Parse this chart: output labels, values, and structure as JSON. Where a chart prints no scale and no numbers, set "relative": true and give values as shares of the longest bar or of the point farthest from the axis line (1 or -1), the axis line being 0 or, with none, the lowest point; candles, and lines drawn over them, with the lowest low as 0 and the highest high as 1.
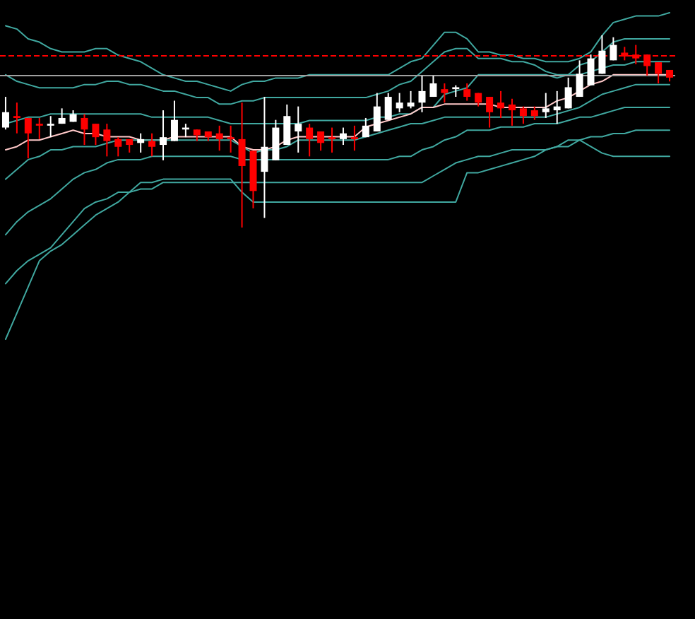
{
  "chart_data": [
    {
      "type": "candlestick",
      "relative": true,
      "categories": [
        null,
        null,
        null,
        null,
        null,
        null,
        null,
        null,
        null,
        null,
        null,
        null,
        null,
        null,
        null,
        null,
        null,
        null,
        null,
        null,
        null,
        null,
        null,
        null,
        null,
        null,
        null,
        null,
        null,
        null,
        null,
        null,
        null,
        null,
        null,
        null,
        null,
        null,
        null,
        null,
        null,
        null,
        null,
        null,
        null,
        null,
        null,
        null,
        null,
        null,
        null,
        null,
        null,
        null,
        null,
        null,
        null,
        null,
        null,
        null
      ],
      "ohlc": [
        [
          0.52,
          0.68,
          0.51,
          0.6
        ],
        [
          0.58,
          0.65,
          0.49,
          0.57
        ],
        [
          0.57,
          0.57,
          0.36,
          0.49
        ],
        [
          0.54,
          0.57,
          0.46,
          0.53
        ],
        [
          0.53,
          0.58,
          0.47,
          0.54
        ],
        [
          0.54,
          0.62,
          0.54,
          0.57
        ],
        [
          0.55,
          0.61,
          0.55,
          0.59
        ],
        [
          0.57,
          0.59,
          0.43,
          0.51
        ],
        [
          0.54,
          0.54,
          0.43,
          0.47
        ],
        [
          0.51,
          0.54,
          0.37,
          0.45
        ],
        [
          0.46,
          0.47,
          0.37,
          0.42
        ],
        [
          0.46,
          0.46,
          0.39,
          0.43
        ],
        [
          0.44,
          0.49,
          0.39,
          0.46
        ],
        [
          0.45,
          0.49,
          0.37,
          0.42
        ],
        [
          0.43,
          0.61,
          0.35,
          0.47
        ],
        [
          0.45,
          0.66,
          0.45,
          0.56
        ],
        [
          0.51,
          0.54,
          0.47,
          0.52
        ],
        [
          0.51,
          0.51,
          0.45,
          0.48
        ],
        [
          0.5,
          0.5,
          0.45,
          0.47
        ],
        [
          0.49,
          0.53,
          0.4,
          0.46
        ],
        [
          0.47,
          0.53,
          0.39,
          0.46
        ],
        [
          0.46,
          0.65,
          0,
          0.32
        ],
        [
          0.4,
          0.4,
          0.1,
          0.19
        ],
        [
          0.29,
          0.68,
          0.05,
          0.42
        ],
        [
          0.35,
          0.56,
          0.35,
          0.52
        ],
        [
          0.43,
          0.64,
          0.43,
          0.58
        ],
        [
          0.5,
          0.63,
          0.39,
          0.54
        ],
        [
          0.52,
          0.54,
          0.37,
          0.46
        ],
        [
          0.5,
          0.5,
          0.4,
          0.44
        ],
        [
          0.47,
          0.52,
          0.39,
          0.46
        ],
        [
          0.46,
          0.52,
          0.43,
          0.49
        ],
        [
          0.47,
          0.53,
          0.4,
          0.46
        ],
        [
          0.47,
          0.57,
          0.47,
          0.53
        ],
        [
          0.5,
          0.7,
          0.5,
          0.63
        ],
        [
          0.56,
          0.7,
          0.56,
          0.68
        ],
        [
          0.62,
          0.7,
          0.6,
          0.65
        ],
        [
          0.63,
          0.71,
          0.62,
          0.65
        ],
        [
          0.65,
          0.79,
          0.6,
          0.71
        ],
        [
          0.68,
          0.79,
          0.68,
          0.75
        ],
        [
          0.72,
          0.75,
          0.65,
          0.7
        ],
        [
          0.72,
          0.74,
          0.68,
          0.73
        ],
        [
          0.72,
          0.75,
          0.66,
          0.68
        ],
        [
          0.7,
          0.7,
          0.63,
          0.65
        ],
        [
          0.68,
          0.68,
          0.52,
          0.6
        ],
        [
          0.65,
          0.71,
          0.57,
          0.62
        ],
        [
          0.64,
          0.67,
          0.53,
          0.61
        ],
        [
          0.62,
          0.63,
          0.54,
          0.58
        ],
        [
          0.61,
          0.63,
          0.56,
          0.58
        ],
        [
          0.6,
          0.7,
          0.57,
          0.62
        ],
        [
          0.61,
          0.71,
          0.54,
          0.63
        ],
        [
          0.62,
          0.78,
          0.62,
          0.73
        ],
        [
          0.68,
          0.87,
          0.68,
          0.8
        ],
        [
          0.74,
          0.9,
          0.74,
          0.88
        ],
        [
          0.8,
          1,
          0.8,
          0.92
        ],
        [
          0.87,
          0.99,
          0.87,
          0.95
        ],
        [
          0.91,
          0.94,
          0.87,
          0.89
        ],
        [
          0.9,
          0.95,
          0.85,
          0.88
        ],
        [
          0.9,
          0.9,
          0.79,
          0.84
        ],
        [
          0.86,
          0.86,
          0.75,
          0.8
        ],
        [
          0.82,
          0.82,
          0.76,
          0.78
        ]
      ],
      "colors": [
        "#ffffff",
        "#ff0000",
        "#ff0000",
        "#ff0000",
        "#ffffff",
        "#ffffff",
        "#ffffff",
        "#ff0000",
        "#ff0000",
        "#ff0000",
        "#ff0000",
        "#ff0000",
        "#ffffff",
        "#ff0000",
        "#ffffff",
        "#ffffff",
        "#ffffff",
        "#ff0000",
        "#ff0000",
        "#ff0000",
        "#ff0000",
        "#ff0000",
        "#ff0000",
        "#ffffff",
        "#ffffff",
        "#ffffff",
        "#ffffff",
        "#ff0000",
        "#ff0000",
        "#ff0000",
        "#ffffff",
        "#ff0000",
        "#ffffff",
        "#ffffff",
        "#ffffff",
        "#ffffff",
        "#ffffff",
        "#ffffff",
        "#ffffff",
        "#ff0000",
        "#ffffff",
        "#ff0000",
        "#ff0000",
        "#ff0000",
        "#ff0000",
        "#ff0000",
        "#ff0000",
        "#ff0000",
        "#ffffff",
        "#ffffff",
        "#ffffff",
        "#ffffff",
        "#ffffff",
        "#ffffff",
        "#ffffff",
        "#ff0000",
        "#ff0000",
        "#ff0000",
        "#ff0000",
        "#ff0000"
      ]
    },
    {
      "type": "line",
      "relative": true,
      "line_style": "solid",
      "ref_lines": [
        {
          "axis": "y",
          "value": 0.87,
          "color": "#ff0000",
          "line_style": "dashed"
        },
        {
          "axis": "y",
          "value": 0.81,
          "color": "#a0a0a0",
          "line_style": "solid"
        }
      ],
      "categories": [
        null,
        null,
        null,
        null,
        null,
        null,
        null,
        null,
        null,
        null,
        null,
        null,
        null,
        null,
        null,
        null,
        null,
        null,
        null,
        null,
        null,
        null,
        null,
        null,
        null,
        null,
        null,
        null,
        null,
        null,
        null,
        null,
        null,
        null,
        null,
        null,
        null,
        null,
        null,
        null,
        null,
        null,
        null,
        null,
        null,
        null,
        null,
        null,
        null,
        null,
        null,
        null,
        null,
        null,
        null,
        null,
        null,
        null,
        null,
        null
      ],
      "series": [
        {
          "color": "#40a8a0",
          "values": [
            0.96,
            0.95,
            0.92,
            0.91,
            0.89,
            0.88,
            0.88,
            0.88,
            0.89,
            0.89,
            0.87,
            0.86,
            0.85,
            0.83,
            0.81,
            0.8,
            0.79,
            0.79,
            0.78,
            0.77,
            0.76,
            0.78,
            0.79,
            0.79,
            0.8,
            0.8,
            0.8,
            0.81,
            0.81,
            0.81,
            0.81,
            0.81,
            0.81,
            0.81,
            0.81,
            0.83,
            0.85,
            0.86,
            0.9,
            0.94,
            0.94,
            0.92,
            0.88,
            0.88,
            0.87,
            0.87,
            0.86,
            0.86,
            0.85,
            0.85,
            0.85,
            0.86,
            0.88,
            0.93,
            0.97,
            0.98,
            0.99,
            0.99,
            0.99,
            1
          ]
        },
        {
          "color": "#40a8a0",
          "values": [
            0.81,
            0.79,
            0.78,
            0.77,
            0.77,
            0.77,
            0.77,
            0.78,
            0.78,
            0.79,
            0.79,
            0.78,
            0.78,
            0.77,
            0.76,
            0.76,
            0.75,
            0.74,
            0.74,
            0.72,
            0.72,
            0.73,
            0.73,
            0.74,
            0.74,
            0.74,
            0.74,
            0.74,
            0.74,
            0.74,
            0.74,
            0.74,
            0.74,
            0.75,
            0.76,
            0.78,
            0.79,
            0.82,
            0.85,
            0.88,
            0.89,
            0.89,
            0.86,
            0.86,
            0.86,
            0.85,
            0.85,
            0.84,
            0.82,
            0.81,
            0.81,
            0.84,
            0.85,
            0.88,
            0.91,
            0.92,
            0.92,
            0.92,
            0.92,
            0.92
          ]
        },
        {
          "color": "#40a8a0",
          "values": [
            0.66,
            0.67,
            0.68,
            0.68,
            0.69,
            0.69,
            0.69,
            0.69,
            0.69,
            0.69,
            0.69,
            0.69,
            0.69,
            0.68,
            0.68,
            0.68,
            0.68,
            0.68,
            0.68,
            0.67,
            0.66,
            0.66,
            0.66,
            0.66,
            0.66,
            0.66,
            0.66,
            0.67,
            0.67,
            0.67,
            0.67,
            0.67,
            0.67,
            0.68,
            0.68,
            0.69,
            0.69,
            0.71,
            0.71,
            0.75,
            0.76,
            0.77,
            0.81,
            0.81,
            0.81,
            0.81,
            0.81,
            0.81,
            0.81,
            0.8,
            0.81,
            0.81,
            0.82,
            0.83,
            0.84,
            0.84,
            0.85,
            0.85,
            0.85,
            0.85
          ]
        },
        {
          "color": "#ffc8c8",
          "values": [
            0.58,
            0.59,
            0.61,
            0.61,
            0.62,
            0.63,
            0.64,
            0.63,
            0.63,
            0.62,
            0.62,
            0.62,
            0.61,
            0.61,
            0.61,
            0.62,
            0.62,
            0.62,
            0.62,
            0.62,
            0.62,
            0.59,
            0.58,
            0.58,
            0.59,
            0.61,
            0.62,
            0.62,
            0.62,
            0.62,
            0.62,
            0.62,
            0.65,
            0.66,
            0.67,
            0.68,
            0.69,
            0.71,
            0.71,
            0.72,
            0.72,
            0.72,
            0.72,
            0.72,
            0.71,
            0.71,
            0.71,
            0.71,
            0.71,
            0.73,
            0.74,
            0.76,
            0.78,
            0.79,
            0.81,
            0.81,
            0.81,
            0.81,
            0.81,
            0.81
          ]
        },
        {
          "color": "#40a8a0",
          "values": [
            0.49,
            0.52,
            0.55,
            0.56,
            0.58,
            0.58,
            0.59,
            0.59,
            0.59,
            0.6,
            0.61,
            0.61,
            0.61,
            0.61,
            0.61,
            0.61,
            0.61,
            0.61,
            0.61,
            0.61,
            0.61,
            0.59,
            0.57,
            0.58,
            0.58,
            0.59,
            0.61,
            0.61,
            0.61,
            0.61,
            0.61,
            0.61,
            0.62,
            0.63,
            0.64,
            0.65,
            0.66,
            0.66,
            0.67,
            0.68,
            0.68,
            0.68,
            0.68,
            0.68,
            0.68,
            0.68,
            0.68,
            0.68,
            0.68,
            0.69,
            0.7,
            0.71,
            0.73,
            0.75,
            0.76,
            0.77,
            0.78,
            0.78,
            0.78,
            0.78
          ]
        },
        {
          "color": "#40a8a0",
          "values": [
            0.32,
            0.36,
            0.39,
            0.41,
            0.43,
            0.46,
            0.49,
            0.51,
            0.52,
            0.54,
            0.55,
            0.55,
            0.55,
            0.56,
            0.56,
            0.56,
            0.56,
            0.56,
            0.56,
            0.56,
            0.56,
            0.55,
            0.55,
            0.55,
            0.55,
            0.55,
            0.55,
            0.55,
            0.55,
            0.55,
            0.55,
            0.55,
            0.55,
            0.55,
            0.55,
            0.56,
            0.56,
            0.58,
            0.59,
            0.61,
            0.62,
            0.64,
            0.64,
            0.64,
            0.65,
            0.65,
            0.65,
            0.66,
            0.66,
            0.66,
            0.67,
            0.68,
            0.68,
            0.69,
            0.7,
            0.71,
            0.71,
            0.71,
            0.71,
            0.71
          ]
        },
        {
          "color": "#40a8a0",
          "values": [
            0.17,
            0.21,
            0.24,
            0.26,
            0.28,
            0.32,
            0.36,
            0.4,
            0.42,
            0.43,
            0.45,
            0.45,
            0.46,
            0.46,
            0.48,
            0.48,
            0.48,
            0.48,
            0.48,
            0.48,
            0.48,
            0.48,
            0.48,
            0.48,
            0.48,
            0.48,
            0.48,
            0.48,
            0.48,
            0.48,
            0.48,
            0.48,
            0.48,
            0.48,
            0.48,
            0.48,
            0.48,
            0.48,
            0.5,
            0.52,
            0.54,
            0.55,
            0.56,
            0.56,
            0.57,
            0.58,
            0.58,
            0.58,
            0.58,
            0.59,
            0.59,
            0.61,
            0.62,
            0.62,
            0.63,
            0.63,
            0.64,
            0.64,
            0.64,
            0.64
          ]
        },
        {
          "color": "#40a8a0",
          "values": [
            0,
            0.08,
            0.16,
            0.24,
            0.27,
            0.29,
            0.32,
            0.35,
            0.38,
            0.4,
            0.42,
            0.45,
            0.48,
            0.48,
            0.49,
            0.49,
            0.49,
            0.49,
            0.49,
            0.49,
            0.49,
            0.45,
            0.42,
            0.42,
            0.42,
            0.42,
            0.42,
            0.42,
            0.42,
            0.42,
            0.42,
            0.42,
            0.42,
            0.42,
            0.42,
            0.42,
            0.42,
            0.42,
            0.42,
            0.42,
            0.42,
            0.51,
            0.51,
            0.52,
            0.53,
            0.54,
            0.55,
            0.56,
            0.58,
            0.59,
            0.61,
            0.61,
            0.59,
            0.57,
            0.56,
            0.56,
            0.56,
            0.56,
            0.56,
            0.56
          ]
        }
      ]
    }
  ]
}
